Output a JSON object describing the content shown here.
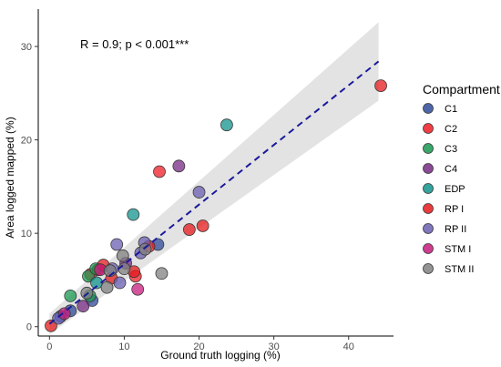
{
  "chart_data": {
    "type": "scatter",
    "xlabel": "Ground truth logging (%)",
    "ylabel": "Area logged mapped (%)",
    "xlim": [
      -1.5,
      46
    ],
    "ylim": [
      -1,
      34
    ],
    "xticks": [
      0,
      10,
      20,
      30,
      40
    ],
    "yticks": [
      0,
      10,
      20,
      30
    ],
    "grid": false,
    "annotation": "R = 0.9; p < 0.001***",
    "regression": {
      "x_start": 0,
      "y_start": 0.3,
      "x_end": 44,
      "y_end": 28.4,
      "ci_upper_start": 1.4,
      "ci_lower_start": -0.8,
      "ci_upper_end": 32.6,
      "ci_lower_end": 24.2,
      "line_color": "#1a1a9c",
      "band_color": "#d9d9d9"
    },
    "legend": {
      "title": "Compartment",
      "placement": "right",
      "entries": [
        {
          "name": "C1",
          "color": "#2f4b9a"
        },
        {
          "name": "C2",
          "color": "#ee1c25"
        },
        {
          "name": "C3",
          "color": "#1a9850"
        },
        {
          "name": "C4",
          "color": "#762a83"
        },
        {
          "name": "EDP",
          "color": "#13948d"
        },
        {
          "name": "RP I",
          "color": "#e41a1c"
        },
        {
          "name": "RP II",
          "color": "#6a5fb2"
        },
        {
          "name": "STM I",
          "color": "#c51b7d"
        },
        {
          "name": "STM II",
          "color": "#808080"
        }
      ]
    },
    "series": [
      {
        "name": "C1",
        "color": "#2f4b9a",
        "points": [
          [
            1.5,
            1.1
          ],
          [
            2.8,
            1.7
          ],
          [
            5.7,
            2.8
          ],
          [
            14.5,
            8.8
          ]
        ]
      },
      {
        "name": "C2",
        "color": "#ee1c25",
        "points": [
          [
            5.5,
            5.6
          ],
          [
            6.5,
            6.1
          ],
          [
            11.5,
            5.4
          ],
          [
            14.7,
            16.6
          ],
          [
            13.3,
            8.6
          ]
        ]
      },
      {
        "name": "C3",
        "color": "#1a9850",
        "points": [
          [
            2.8,
            3.3
          ],
          [
            5.2,
            5.4
          ],
          [
            5.4,
            3.3
          ],
          [
            6.2,
            6.2
          ]
        ]
      },
      {
        "name": "C4",
        "color": "#762a83",
        "points": [
          [
            4.5,
            2.2
          ],
          [
            17.3,
            17.2
          ],
          [
            10.2,
            6.8
          ]
        ]
      },
      {
        "name": "EDP",
        "color": "#13948d",
        "points": [
          [
            11.2,
            12.0
          ],
          [
            23.7,
            21.6
          ],
          [
            6.3,
            4.7
          ]
        ]
      },
      {
        "name": "RP I",
        "color": "#e41a1c",
        "points": [
          [
            8.3,
            5.2
          ],
          [
            11.3,
            5.9
          ],
          [
            18.7,
            10.4
          ],
          [
            20.5,
            10.8
          ],
          [
            0.2,
            0.1
          ],
          [
            44.3,
            25.8
          ],
          [
            7.2,
            6.6
          ]
        ]
      },
      {
        "name": "RP II",
        "color": "#6a5fb2",
        "points": [
          [
            9.0,
            8.8
          ],
          [
            12.7,
            9.0
          ],
          [
            20.0,
            14.4
          ],
          [
            9.4,
            4.7
          ],
          [
            12.2,
            7.9
          ],
          [
            8.4,
            6.2
          ],
          [
            1.2,
            0.9
          ]
        ]
      },
      {
        "name": "STM I",
        "color": "#c51b7d",
        "points": [
          [
            2.0,
            1.4
          ],
          [
            11.8,
            4.0
          ],
          [
            6.8,
            6.1
          ]
        ]
      },
      {
        "name": "STM II",
        "color": "#808080",
        "points": [
          [
            5.0,
            3.6
          ],
          [
            7.7,
            4.2
          ],
          [
            10.0,
            6.2
          ],
          [
            9.8,
            7.6
          ],
          [
            12.8,
            8.3
          ],
          [
            15.0,
            5.7
          ],
          [
            8.1,
            6.0
          ]
        ]
      }
    ]
  }
}
